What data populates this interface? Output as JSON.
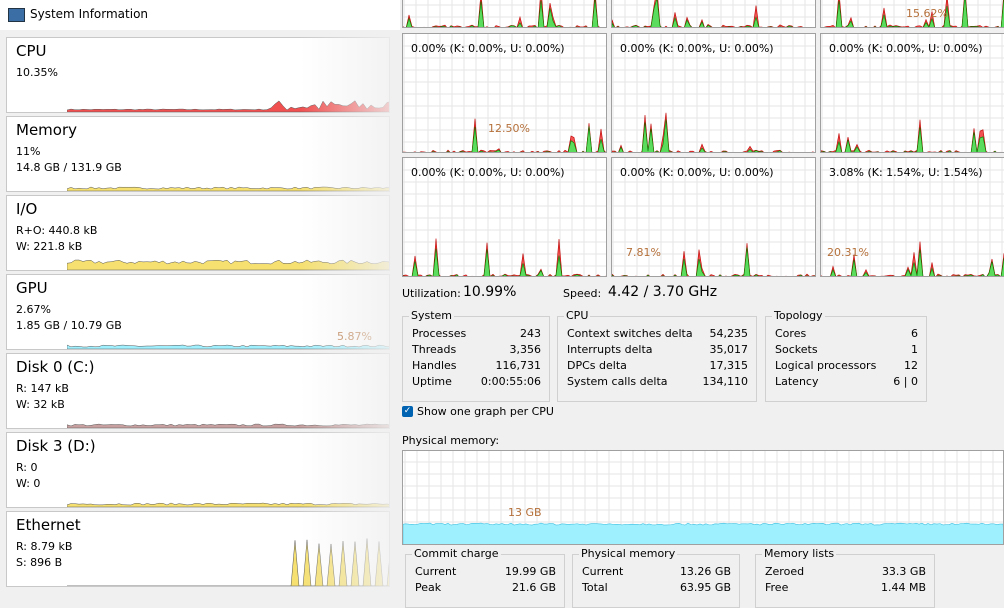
{
  "window": {
    "title": "System Information"
  },
  "sidebar": [
    {
      "name": "CPU",
      "lines": [
        "10.35%"
      ]
    },
    {
      "name": "Memory",
      "lines": [
        "11%",
        "14.8 GB / 131.9 GB"
      ]
    },
    {
      "name": "I/O",
      "lines": [
        "R+O: 440.8 kB",
        "W: 221.8 kB"
      ]
    },
    {
      "name": "GPU",
      "lines": [
        "2.67%",
        "1.85 GB / 10.79 GB"
      ],
      "graph_label": "5.87%"
    },
    {
      "name": "Disk 0 (C:)",
      "lines": [
        "R: 147 kB",
        "W: 32 kB"
      ]
    },
    {
      "name": "Disk 3 (D:)",
      "lines": [
        "R: 0",
        "W: 0"
      ]
    },
    {
      "name": "Ethernet",
      "lines": [
        "R: 8.79 kB",
        "S: 896 B"
      ]
    }
  ],
  "cpu_graphs": [
    {
      "graph_label": null,
      "text": null
    },
    {
      "graph_label": null,
      "text": null
    },
    {
      "graph_label": "15.62%",
      "text": null
    },
    {
      "text": "0.00% (K: 0.00%, U: 0.00%)",
      "graph_label": "12.50%"
    },
    {
      "text": "0.00% (K: 0.00%, U: 0.00%)",
      "graph_label": null
    },
    {
      "text": "0.00% (K: 0.00%, U: 0.00%)",
      "graph_label": null
    },
    {
      "text": "0.00% (K: 0.00%, U: 0.00%)",
      "graph_label": null
    },
    {
      "text": "0.00% (K: 0.00%, U: 0.00%)",
      "graph_label": "7.81%"
    },
    {
      "text": "3.08% (K: 1.54%, U: 1.54%)",
      "graph_label": "20.31%"
    }
  ],
  "utilization": {
    "label": "Utilization:",
    "value": "10.99%"
  },
  "speed": {
    "label": "Speed:",
    "value": "4.42 / 3.70 GHz"
  },
  "groups": [
    {
      "title": "System",
      "rows": [
        [
          "Processes",
          "243"
        ],
        [
          "Threads",
          "3,356"
        ],
        [
          "Handles",
          "116,731"
        ],
        [
          "Uptime",
          "0:00:55:06"
        ]
      ]
    },
    {
      "title": "CPU",
      "rows": [
        [
          "Context switches delta",
          "54,235"
        ],
        [
          "Interrupts delta",
          "35,017"
        ],
        [
          "DPCs delta",
          "17,315"
        ],
        [
          "System calls delta",
          "134,110"
        ]
      ]
    },
    {
      "title": "Topology",
      "rows": [
        [
          "Cores",
          "6"
        ],
        [
          "Sockets",
          "1"
        ],
        [
          "Logical processors",
          "12"
        ],
        [
          "Latency",
          "6 | 0"
        ]
      ]
    }
  ],
  "checkbox": {
    "label": "Show one graph per CPU"
  },
  "physical_memory": {
    "label": "Physical memory:",
    "graph_label": "13 GB"
  },
  "memory_groups": [
    {
      "title": "Commit charge",
      "rows": [
        [
          "Current",
          "19.99 GB"
        ],
        [
          "Peak",
          "21.6 GB"
        ]
      ]
    },
    {
      "title": "Physical memory",
      "rows": [
        [
          "Current",
          "13.26 GB"
        ],
        [
          "Total",
          "63.95 GB"
        ]
      ]
    },
    {
      "title": "Memory lists",
      "rows": [
        [
          "Zeroed",
          "33.3 GB"
        ],
        [
          "Free",
          "1.44 MB"
        ]
      ]
    }
  ]
}
